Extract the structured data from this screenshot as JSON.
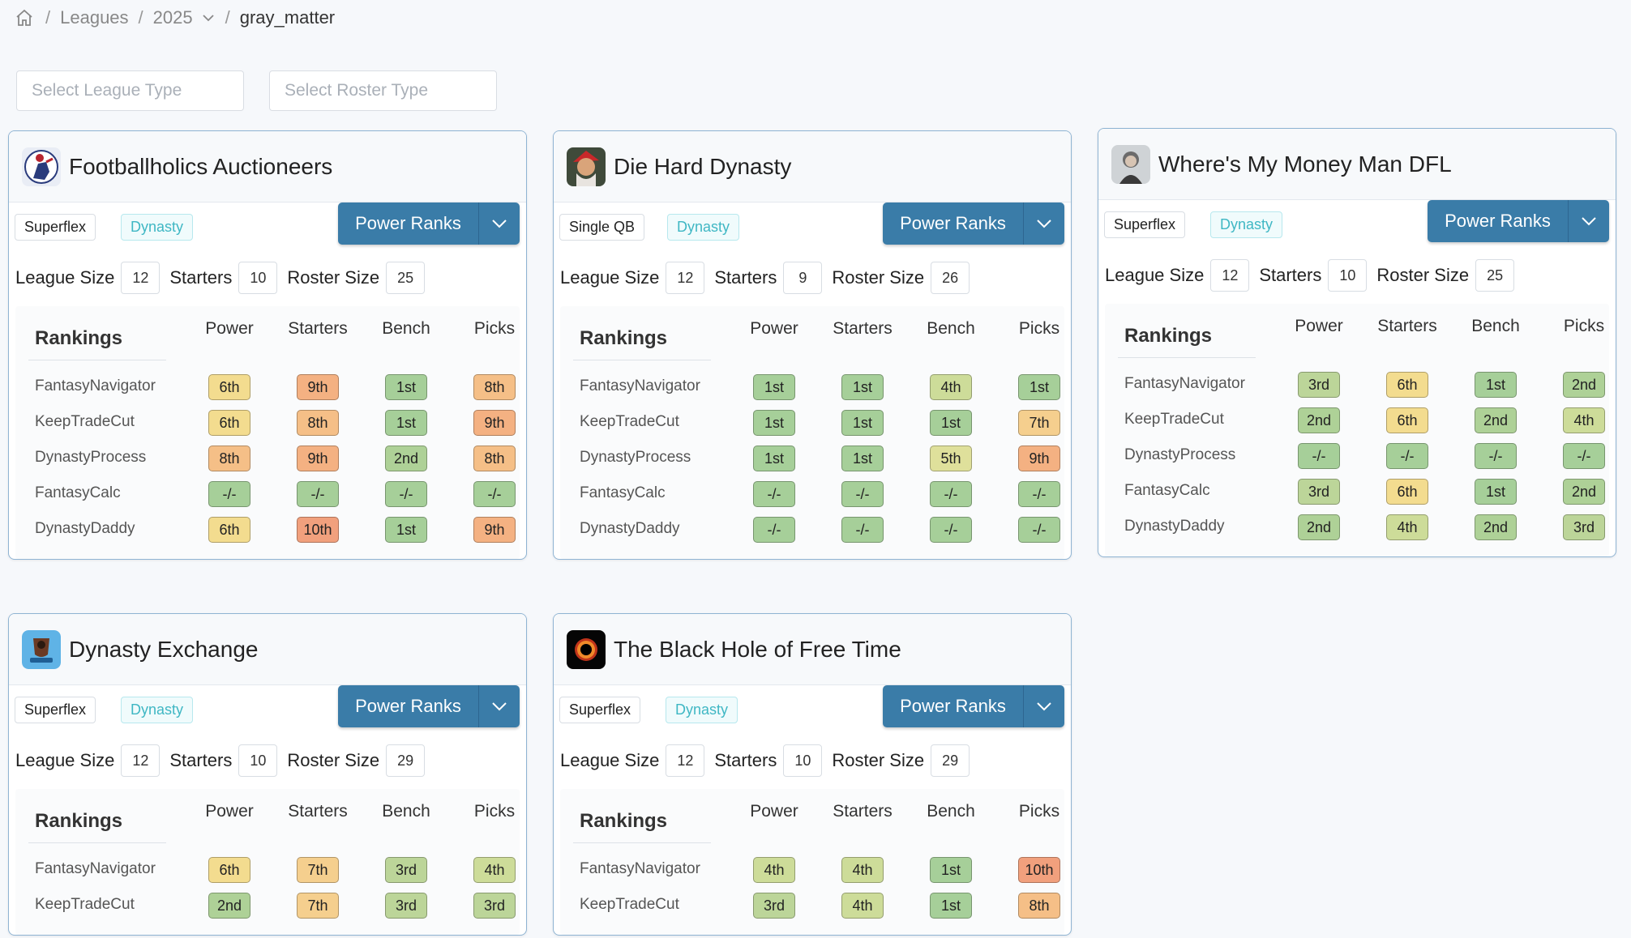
{
  "breadcrumb": {
    "items": [
      "Leagues",
      "2025"
    ],
    "current": "gray_matter",
    "separator": "/"
  },
  "filters": {
    "league_type_placeholder": "Select League Type",
    "roster_type_placeholder": "Select Roster Type"
  },
  "labels": {
    "power_ranks": "Power Ranks",
    "league_size": "League Size",
    "starters": "Starters",
    "roster_size": "Roster Size",
    "rankings": "Rankings",
    "col_power": "Power",
    "col_starters": "Starters",
    "col_bench": "Bench",
    "col_picks": "Picks"
  },
  "rank_colors": {
    "1st": "#a6cf99",
    "2nd": "#aed197",
    "3rd": "#bcd599",
    "4th": "#cddc99",
    "5th": "#dfe09b",
    "6th": "#f3dc8f",
    "7th": "#f5cf8e",
    "8th": "#f5bf87",
    "9th": "#f4b182",
    "10th": "#f1a07d",
    "-/-": "#a6cf99"
  },
  "leagues": [
    {
      "name": "Footballholics Auctioneers",
      "avatar": "football-player-icon",
      "qb_type": "Superflex",
      "league_type": "Dynasty",
      "league_size": "12",
      "starters": "10",
      "roster_size": "25",
      "rankings": [
        {
          "source": "FantasyNavigator",
          "power": "6th",
          "starters": "9th",
          "bench": "1st",
          "picks": "8th"
        },
        {
          "source": "KeepTradeCut",
          "power": "6th",
          "starters": "8th",
          "bench": "1st",
          "picks": "9th"
        },
        {
          "source": "DynastyProcess",
          "power": "8th",
          "starters": "9th",
          "bench": "2nd",
          "picks": "8th"
        },
        {
          "source": "FantasyCalc",
          "power": "-/-",
          "starters": "-/-",
          "bench": "-/-",
          "picks": "-/-"
        },
        {
          "source": "DynastyDaddy",
          "power": "6th",
          "starters": "10th",
          "bench": "1st",
          "picks": "9th"
        }
      ]
    },
    {
      "name": "Die Hard Dynasty",
      "avatar": "santa-character-icon",
      "qb_type": "Single QB",
      "league_type": "Dynasty",
      "league_size": "12",
      "starters": "9",
      "roster_size": "26",
      "rankings": [
        {
          "source": "FantasyNavigator",
          "power": "1st",
          "starters": "1st",
          "bench": "4th",
          "picks": "1st"
        },
        {
          "source": "KeepTradeCut",
          "power": "1st",
          "starters": "1st",
          "bench": "1st",
          "picks": "7th"
        },
        {
          "source": "DynastyProcess",
          "power": "1st",
          "starters": "1st",
          "bench": "5th",
          "picks": "9th"
        },
        {
          "source": "FantasyCalc",
          "power": "-/-",
          "starters": "-/-",
          "bench": "-/-",
          "picks": "-/-"
        },
        {
          "source": "DynastyDaddy",
          "power": "-/-",
          "starters": "-/-",
          "bench": "-/-",
          "picks": "-/-"
        }
      ]
    },
    {
      "name": "Where's My Money Man DFL",
      "avatar": "man-portrait-icon",
      "qb_type": "Superflex",
      "league_type": "Dynasty",
      "league_size": "12",
      "starters": "10",
      "roster_size": "25",
      "rankings": [
        {
          "source": "FantasyNavigator",
          "power": "3rd",
          "starters": "6th",
          "bench": "1st",
          "picks": "2nd"
        },
        {
          "source": "KeepTradeCut",
          "power": "2nd",
          "starters": "6th",
          "bench": "2nd",
          "picks": "4th"
        },
        {
          "source": "DynastyProcess",
          "power": "-/-",
          "starters": "-/-",
          "bench": "-/-",
          "picks": "-/-"
        },
        {
          "source": "FantasyCalc",
          "power": "3rd",
          "starters": "6th",
          "bench": "1st",
          "picks": "2nd"
        },
        {
          "source": "DynastyDaddy",
          "power": "2nd",
          "starters": "4th",
          "bench": "2nd",
          "picks": "3rd"
        }
      ]
    },
    {
      "name": "Dynasty Exchange",
      "avatar": "trading-badge-icon",
      "qb_type": "Superflex",
      "league_type": "Dynasty",
      "league_size": "12",
      "starters": "10",
      "roster_size": "29",
      "rankings": [
        {
          "source": "FantasyNavigator",
          "power": "6th",
          "starters": "7th",
          "bench": "3rd",
          "picks": "4th"
        },
        {
          "source": "KeepTradeCut",
          "power": "2nd",
          "starters": "7th",
          "bench": "3rd",
          "picks": "3rd"
        }
      ]
    },
    {
      "name": "The Black Hole of Free Time",
      "avatar": "black-hole-icon",
      "qb_type": "Superflex",
      "league_type": "Dynasty",
      "league_size": "12",
      "starters": "10",
      "roster_size": "29",
      "rankings": [
        {
          "source": "FantasyNavigator",
          "power": "4th",
          "starters": "4th",
          "bench": "1st",
          "picks": "10th"
        },
        {
          "source": "KeepTradeCut",
          "power": "3rd",
          "starters": "4th",
          "bench": "1st",
          "picks": "8th"
        }
      ]
    }
  ]
}
